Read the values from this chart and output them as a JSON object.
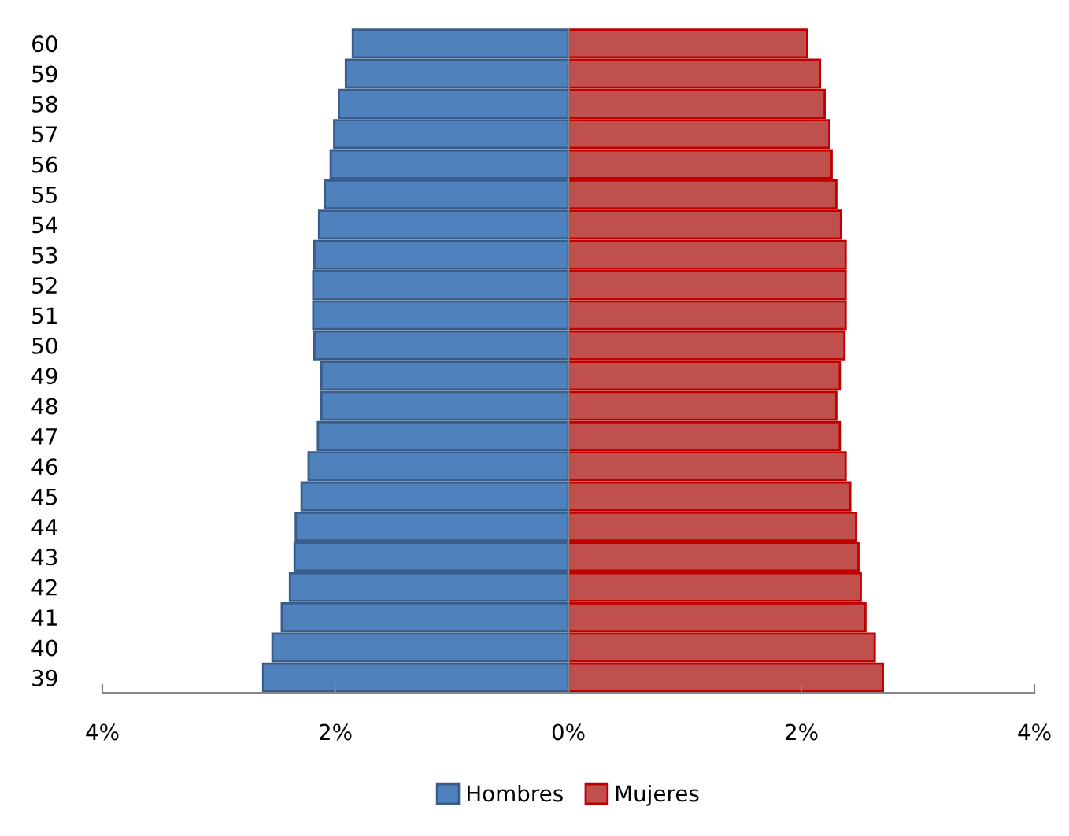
{
  "chart_data": {
    "type": "bar",
    "orientation": "horizontal",
    "stacked": true,
    "categories": [
      "60",
      "59",
      "58",
      "57",
      "56",
      "55",
      "54",
      "53",
      "52",
      "51",
      "50",
      "49",
      "48",
      "47",
      "46",
      "45",
      "44",
      "43",
      "42",
      "41",
      "40",
      "39"
    ],
    "series": [
      {
        "name": "Hombres",
        "color": "#4f81bd",
        "values": [
          -1.85,
          -1.91,
          -1.97,
          -2.01,
          -2.04,
          -2.09,
          -2.14,
          -2.18,
          -2.19,
          -2.19,
          -2.18,
          -2.12,
          -2.12,
          -2.15,
          -2.23,
          -2.29,
          -2.34,
          -2.35,
          -2.39,
          -2.46,
          -2.54,
          -2.62
        ]
      },
      {
        "name": "Mujeres",
        "color": "#c0504d",
        "values": [
          2.05,
          2.16,
          2.2,
          2.24,
          2.26,
          2.3,
          2.34,
          2.38,
          2.38,
          2.38,
          2.37,
          2.33,
          2.3,
          2.33,
          2.38,
          2.42,
          2.47,
          2.49,
          2.51,
          2.55,
          2.63,
          2.7
        ]
      }
    ],
    "xlim": [
      -4,
      4
    ],
    "xticks": [
      {
        "value": -4,
        "label": "4%"
      },
      {
        "value": -2,
        "label": "2%"
      },
      {
        "value": 0,
        "label": "0%"
      },
      {
        "value": 2,
        "label": "2%"
      },
      {
        "value": 4,
        "label": "4%"
      }
    ],
    "legend": "bottom"
  }
}
